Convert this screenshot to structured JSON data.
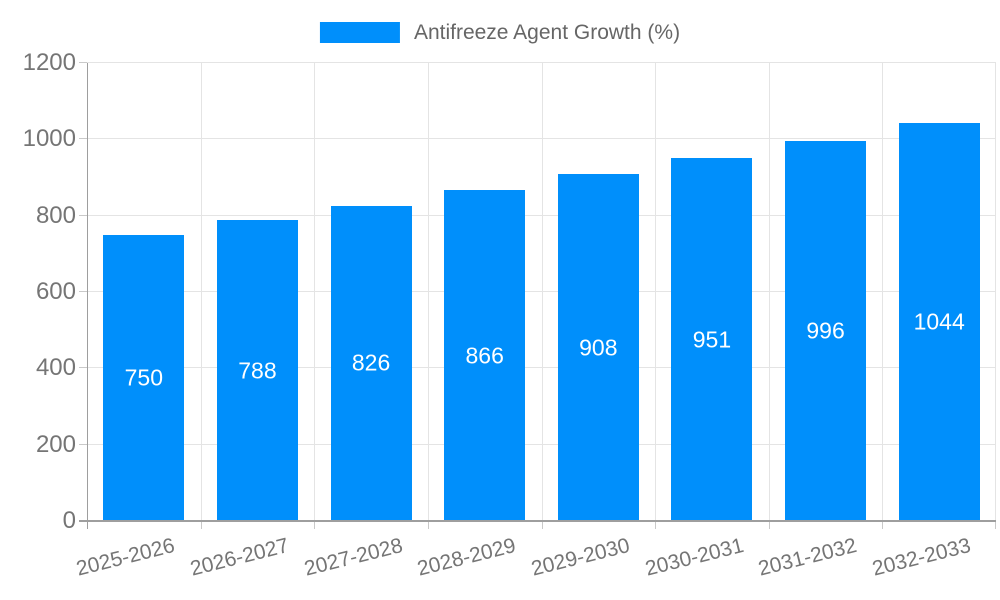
{
  "colors": {
    "bar": "#008FFB",
    "grid": "#e4e4e4",
    "axis": "#9e9e9e",
    "tick": "#c9c9c9",
    "tick_label": "#757575",
    "legend_text": "#666666",
    "value_label": "#ffffff",
    "background": "#ffffff"
  },
  "chart_data": {
    "type": "bar",
    "title": "Antifreeze Agent Growth (%)",
    "legend": [
      "Antifreeze Agent Growth (%)"
    ],
    "legend_position": "top-center",
    "categories": [
      "2025-2026",
      "2026-2027",
      "2027-2028",
      "2028-2029",
      "2029-2030",
      "2030-2031",
      "2031-2032",
      "2032-2033"
    ],
    "values": [
      750,
      788,
      826,
      866,
      908,
      951,
      996,
      1044
    ],
    "value_labels_inside_bars": true,
    "xlabel": "",
    "ylabel": "",
    "ylim": [
      0,
      1200
    ],
    "yticks": [
      0,
      200,
      400,
      600,
      800,
      1000,
      1200
    ],
    "grid": true,
    "x_label_rotation_deg": -14
  }
}
